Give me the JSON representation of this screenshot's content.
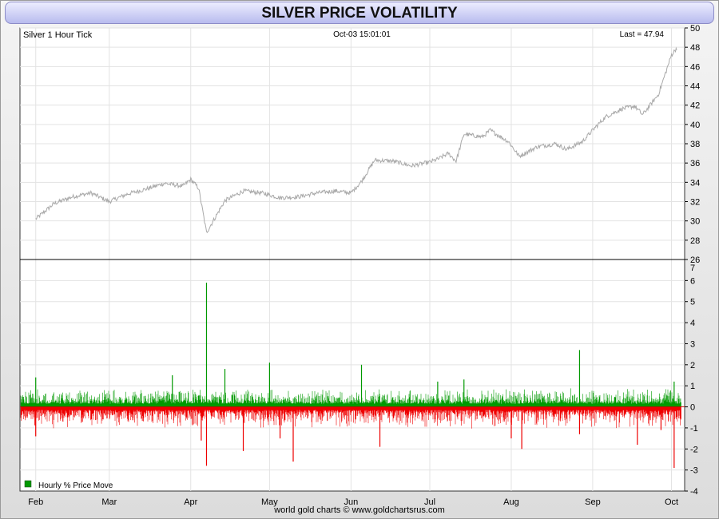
{
  "window": {
    "title": "SILVER PRICE VOLATILITY"
  },
  "header": {
    "left_label": "Silver 1 Hour Tick",
    "center_label": "Oct-03  15:01:01",
    "right_label": "Last = 47.94"
  },
  "footer": {
    "credit": "world gold charts © www.goldchartsrus.com"
  },
  "colors": {
    "price_line": "#a9a9a9",
    "up_bar": "#009900",
    "down_bar": "#ee0000",
    "grid": "#e3e3e3"
  },
  "chart_data": [
    {
      "type": "line",
      "panel": "top",
      "series": [
        {
          "name": "Silver 1 Hour Tick",
          "x": [
            "Feb-01",
            "Feb-08",
            "Feb-15",
            "Feb-22",
            "Mar-01",
            "Mar-08",
            "Mar-15",
            "Mar-22",
            "Mar-29",
            "Apr-01",
            "Apr-04",
            "Apr-07",
            "Apr-14",
            "Apr-21",
            "Apr-28",
            "May-05",
            "May-12",
            "May-19",
            "May-26",
            "Jun-01",
            "Jun-05",
            "Jun-10",
            "Jun-17",
            "Jun-24",
            "Jul-01",
            "Jul-04",
            "Jul-08",
            "Jul-11",
            "Jul-14",
            "Jul-21",
            "Jul-24",
            "Jul-31",
            "Aug-04",
            "Aug-11",
            "Aug-18",
            "Aug-22",
            "Aug-28",
            "Sep-02",
            "Sep-06",
            "Sep-12",
            "Sep-17",
            "Sep-20",
            "Sep-26",
            "Oct-01",
            "Oct-03"
          ],
          "values": [
            30.2,
            31.8,
            32.5,
            32.9,
            32.0,
            32.8,
            33.3,
            33.9,
            33.6,
            34.3,
            33.4,
            28.8,
            32.1,
            33.1,
            32.9,
            32.4,
            32.5,
            32.9,
            33.1,
            32.9,
            34.1,
            36.3,
            36.2,
            35.7,
            36.1,
            36.4,
            37.0,
            36.2,
            39.0,
            38.7,
            39.4,
            38.2,
            36.7,
            37.7,
            38.0,
            37.4,
            38.2,
            39.7,
            40.8,
            41.6,
            41.9,
            41.0,
            43.1,
            47.2,
            47.94
          ]
        }
      ],
      "ylim": [
        26,
        50
      ],
      "yticks": [
        26,
        28,
        30,
        32,
        34,
        36,
        38,
        40,
        42,
        44,
        46,
        48,
        50
      ]
    },
    {
      "type": "bar",
      "panel": "bottom",
      "series": [
        {
          "name": "Hourly % Price Move",
          "spikes": [
            {
              "x": "Feb-01",
              "value": -1.4
            },
            {
              "x": "Feb-01",
              "value": 1.4
            },
            {
              "x": "Mar-25",
              "value": 1.5
            },
            {
              "x": "Apr-07",
              "value": 5.9
            },
            {
              "x": "Apr-07",
              "value": -2.8
            },
            {
              "x": "Apr-05",
              "value": -1.6
            },
            {
              "x": "Apr-14",
              "value": 1.8
            },
            {
              "x": "Apr-21",
              "value": -2.1
            },
            {
              "x": "May-01",
              "value": 2.1
            },
            {
              "x": "May-05",
              "value": -1.5
            },
            {
              "x": "May-10",
              "value": -2.6
            },
            {
              "x": "Jun-05",
              "value": 2.0
            },
            {
              "x": "Jun-12",
              "value": -1.9
            },
            {
              "x": "Jul-04",
              "value": 1.2
            },
            {
              "x": "Jul-14",
              "value": 1.3
            },
            {
              "x": "Aug-01",
              "value": -1.5
            },
            {
              "x": "Aug-05",
              "value": -2.0
            },
            {
              "x": "Aug-27",
              "value": 2.7
            },
            {
              "x": "Aug-27",
              "value": -1.3
            },
            {
              "x": "Sep-18",
              "value": -1.8
            },
            {
              "x": "Sep-27",
              "value": -1.1
            },
            {
              "x": "Oct-02",
              "value": -2.9
            },
            {
              "x": "Oct-02",
              "value": 1.2
            }
          ]
        }
      ],
      "ylim": [
        -4,
        7
      ],
      "yticks": [
        -4,
        -3,
        -2,
        -1,
        0,
        1,
        2,
        3,
        4,
        5,
        6,
        7
      ],
      "legend": {
        "label": "Hourly % Price Move",
        "position": "bottom-left"
      }
    }
  ],
  "x_axis": {
    "months": [
      "Feb",
      "Mar",
      "Apr",
      "May",
      "Jun",
      "Jul",
      "Aug",
      "Sep",
      "Oct"
    ]
  }
}
